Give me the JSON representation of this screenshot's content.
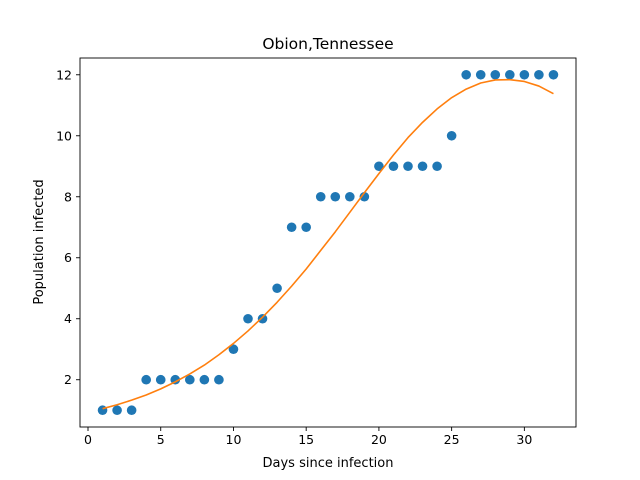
{
  "chart_data": {
    "type": "scatter",
    "title": "Obion,Tennessee",
    "xlabel": "Days since infection",
    "ylabel": "Population infected",
    "xlim": [
      -0.55,
      33.55
    ],
    "ylim": [
      0.45,
      12.55
    ],
    "xticks": [
      0,
      5,
      10,
      15,
      20,
      25,
      30
    ],
    "yticks": [
      2,
      4,
      6,
      8,
      10,
      12
    ],
    "grid": false,
    "series": [
      {
        "kind": "points",
        "color": "#1f77b4",
        "x": [
          1,
          2,
          3,
          4,
          5,
          6,
          7,
          8,
          9,
          10,
          11,
          12,
          13,
          14,
          15,
          16,
          17,
          18,
          19,
          20,
          21,
          22,
          23,
          24,
          25,
          26,
          27,
          28,
          29,
          30,
          31,
          32
        ],
        "y": [
          1,
          1,
          1,
          2,
          2,
          2,
          2,
          2,
          2,
          3,
          4,
          4,
          5,
          7,
          7,
          8,
          8,
          8,
          8,
          9,
          9,
          9,
          9,
          9,
          10,
          12,
          12,
          12,
          12,
          12,
          12,
          12
        ]
      },
      {
        "kind": "line",
        "color": "#ff7f0e",
        "x": [
          1,
          2,
          3,
          4,
          5,
          6,
          7,
          8,
          9,
          10,
          11,
          12,
          13,
          14,
          15,
          16,
          17,
          18,
          19,
          20,
          21,
          22,
          23,
          24,
          25,
          26,
          27,
          28,
          29,
          30,
          31,
          32
        ],
        "y": [
          1.05,
          1.18,
          1.33,
          1.5,
          1.7,
          1.93,
          2.19,
          2.48,
          2.82,
          3.19,
          3.6,
          4.05,
          4.54,
          5.07,
          5.63,
          6.24,
          6.85,
          7.49,
          8.13,
          8.76,
          9.37,
          9.94,
          10.44,
          10.88,
          11.25,
          11.53,
          11.73,
          11.83,
          11.84,
          11.78,
          11.63,
          11.38
        ]
      }
    ]
  }
}
